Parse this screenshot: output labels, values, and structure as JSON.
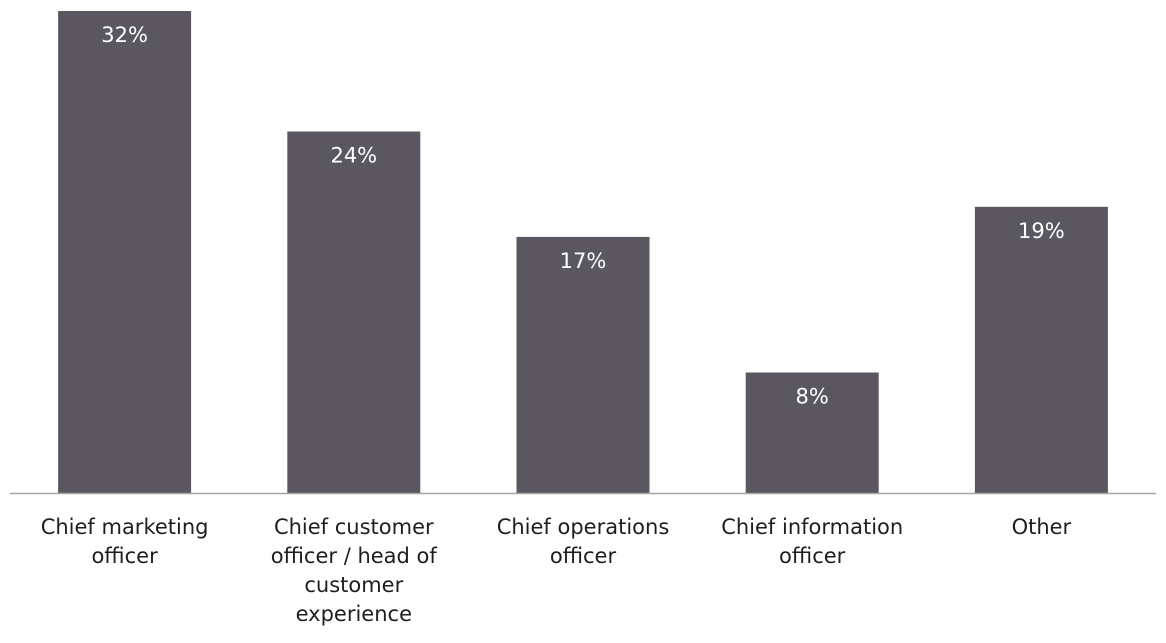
{
  "chart_data": {
    "type": "bar",
    "categories": [
      "Chief marketing officer",
      "Chief customer officer / head of customer experience",
      "Chief operations officer",
      "Chief information officer",
      "Other"
    ],
    "values": [
      32,
      24,
      17,
      8,
      19
    ],
    "value_labels": [
      "32%",
      "24%",
      "17%",
      "8%",
      "19%"
    ],
    "title": "",
    "xlabel": "",
    "ylabel": "",
    "ylim": [
      0,
      32
    ],
    "grid": false,
    "legend": "none",
    "colors": {
      "bar": "#5b5761",
      "baseline": "#a6a6a6",
      "value_label": "#ffffff",
      "category_label": "#1e1e1e"
    }
  }
}
